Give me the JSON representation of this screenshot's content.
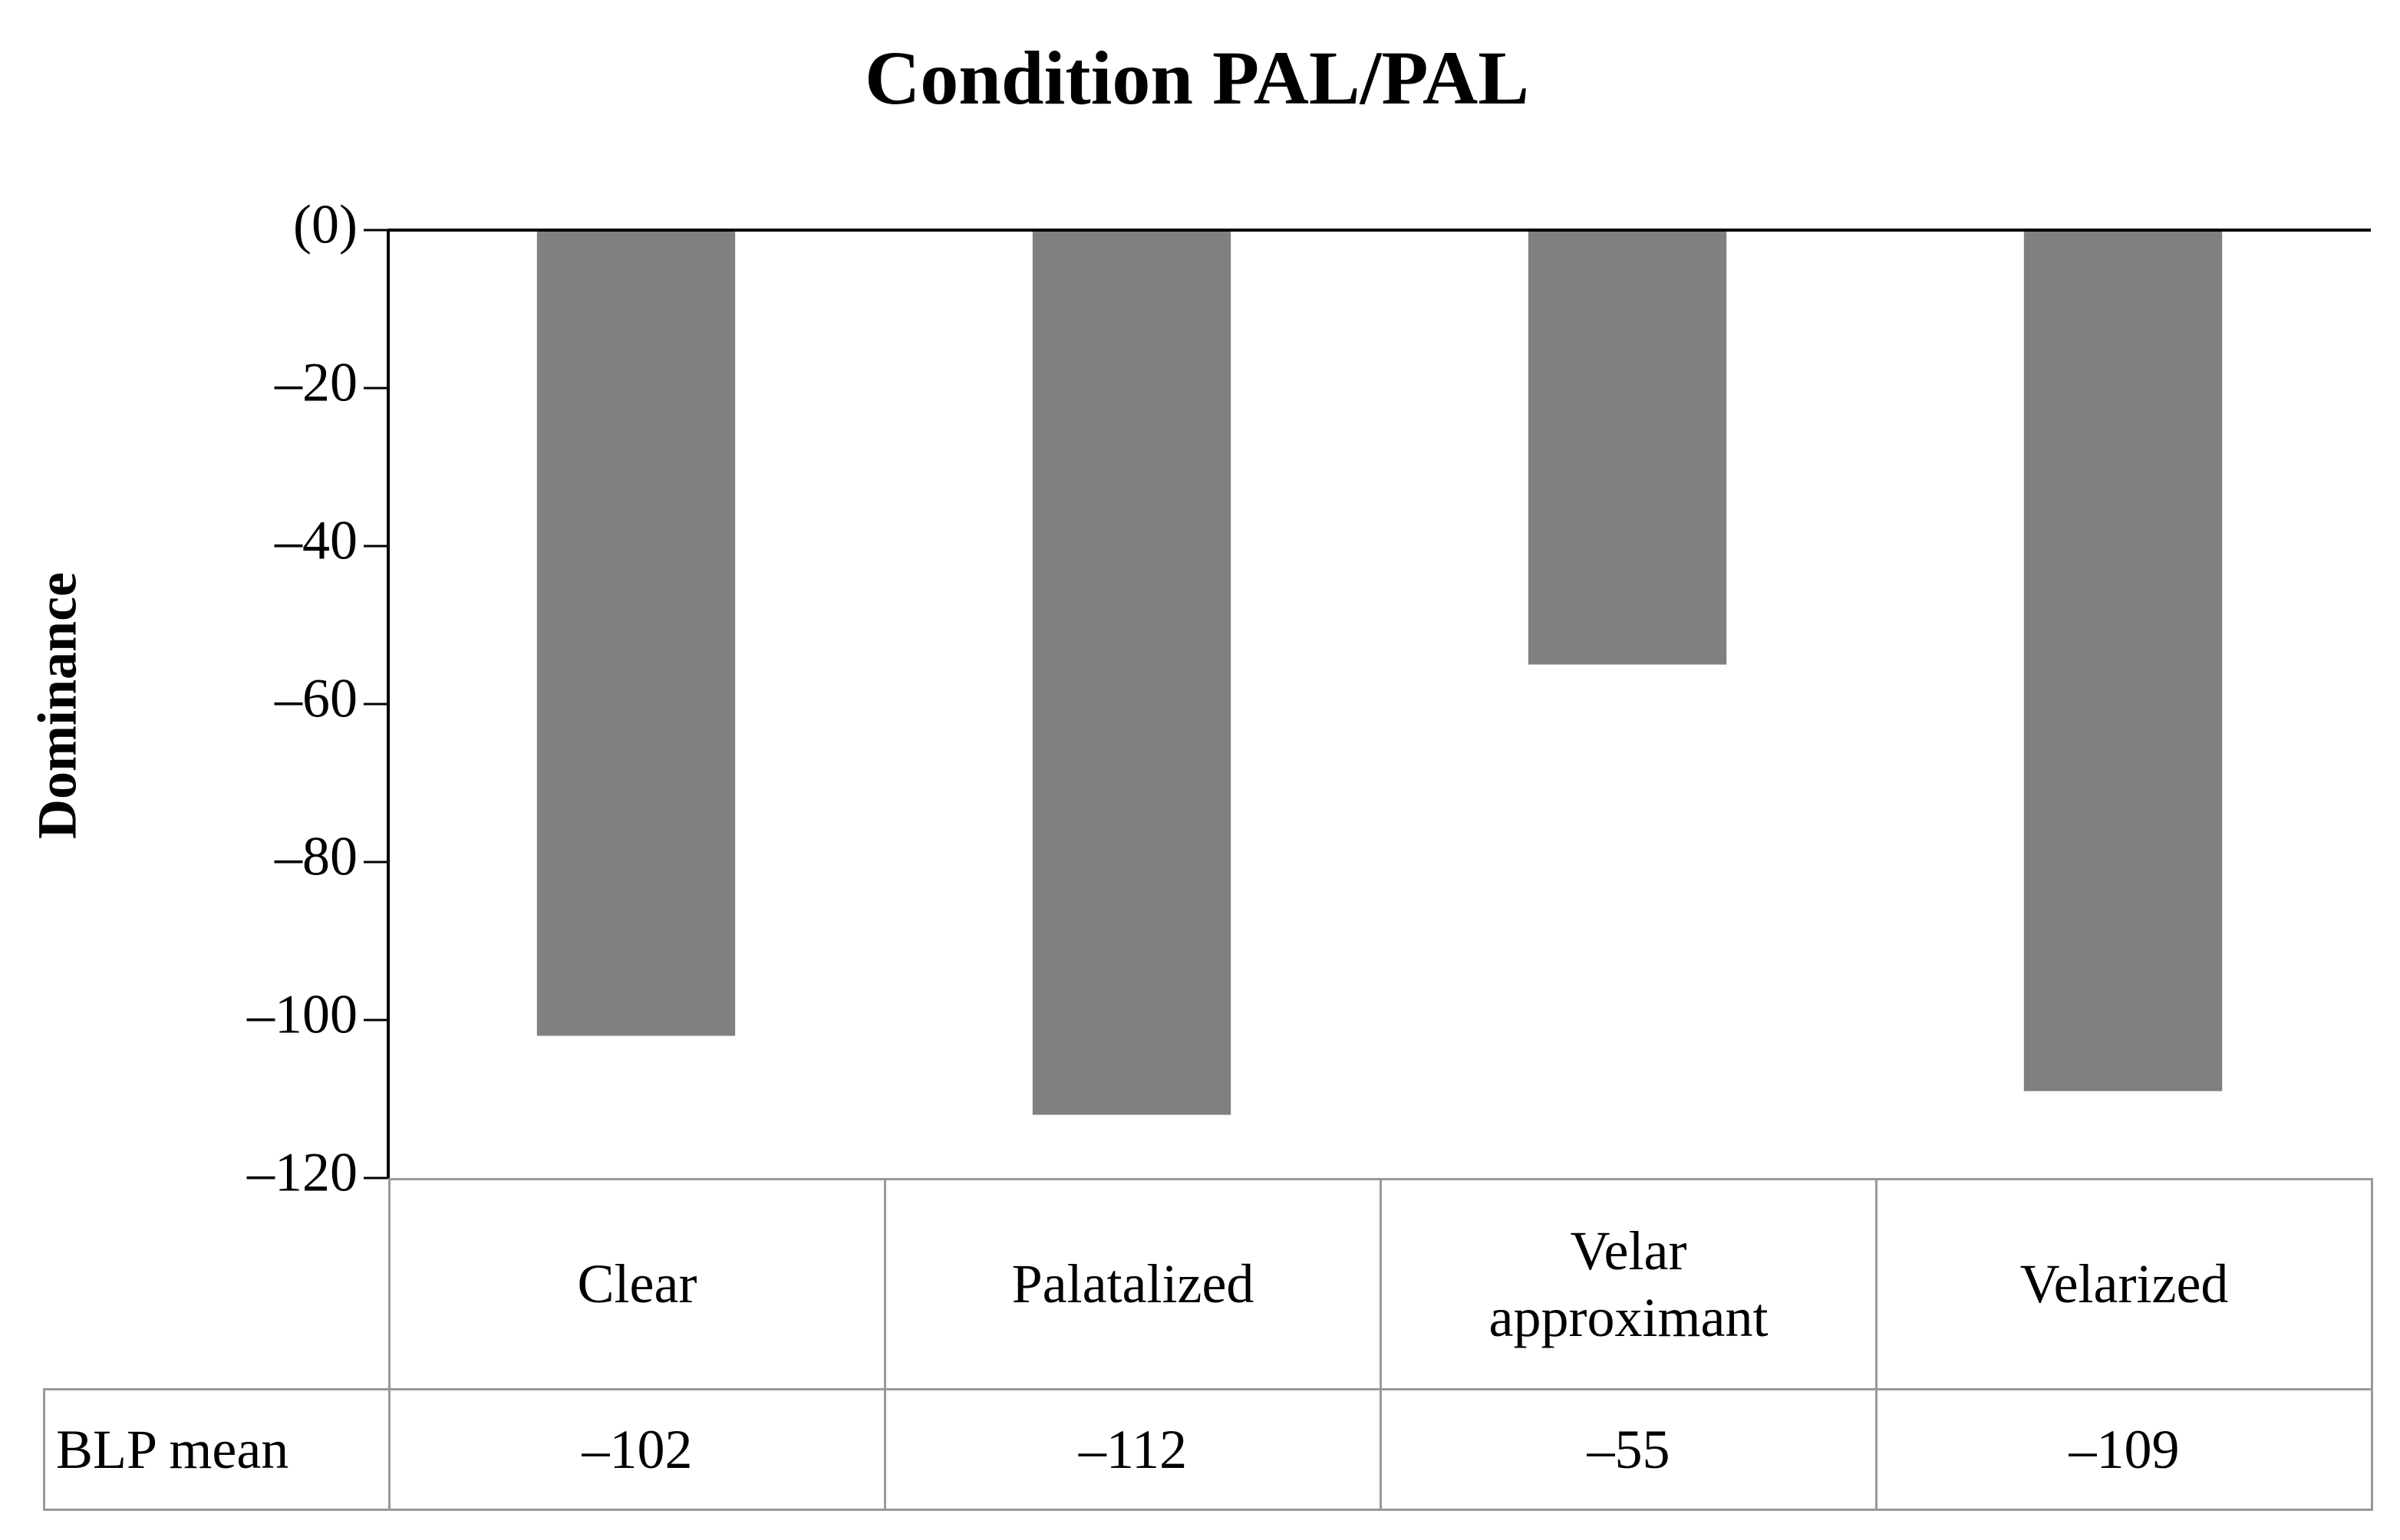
{
  "chart_data": {
    "type": "bar",
    "title": "Condition PAL/PAL",
    "y_label": "Dominance",
    "categories": [
      "Clear",
      "Palatalized",
      "Velar approximant",
      "Velarized"
    ],
    "values": [
      -102,
      -112,
      -55,
      -109
    ],
    "value_labels": [
      "–102",
      "–112",
      "–55",
      "–109"
    ],
    "table_row_label": "BLP mean",
    "color": "#808080",
    "ylim": [
      -120,
      0
    ],
    "yticks": [
      {
        "value": 0,
        "label": "(0)"
      },
      {
        "value": -20,
        "label": "–20"
      },
      {
        "value": -40,
        "label": "–40"
      },
      {
        "value": -60,
        "label": "–60"
      },
      {
        "value": -80,
        "label": "–80"
      },
      {
        "value": -100,
        "label": "–100"
      },
      {
        "value": -120,
        "label": "–120"
      }
    ],
    "grid": false
  }
}
